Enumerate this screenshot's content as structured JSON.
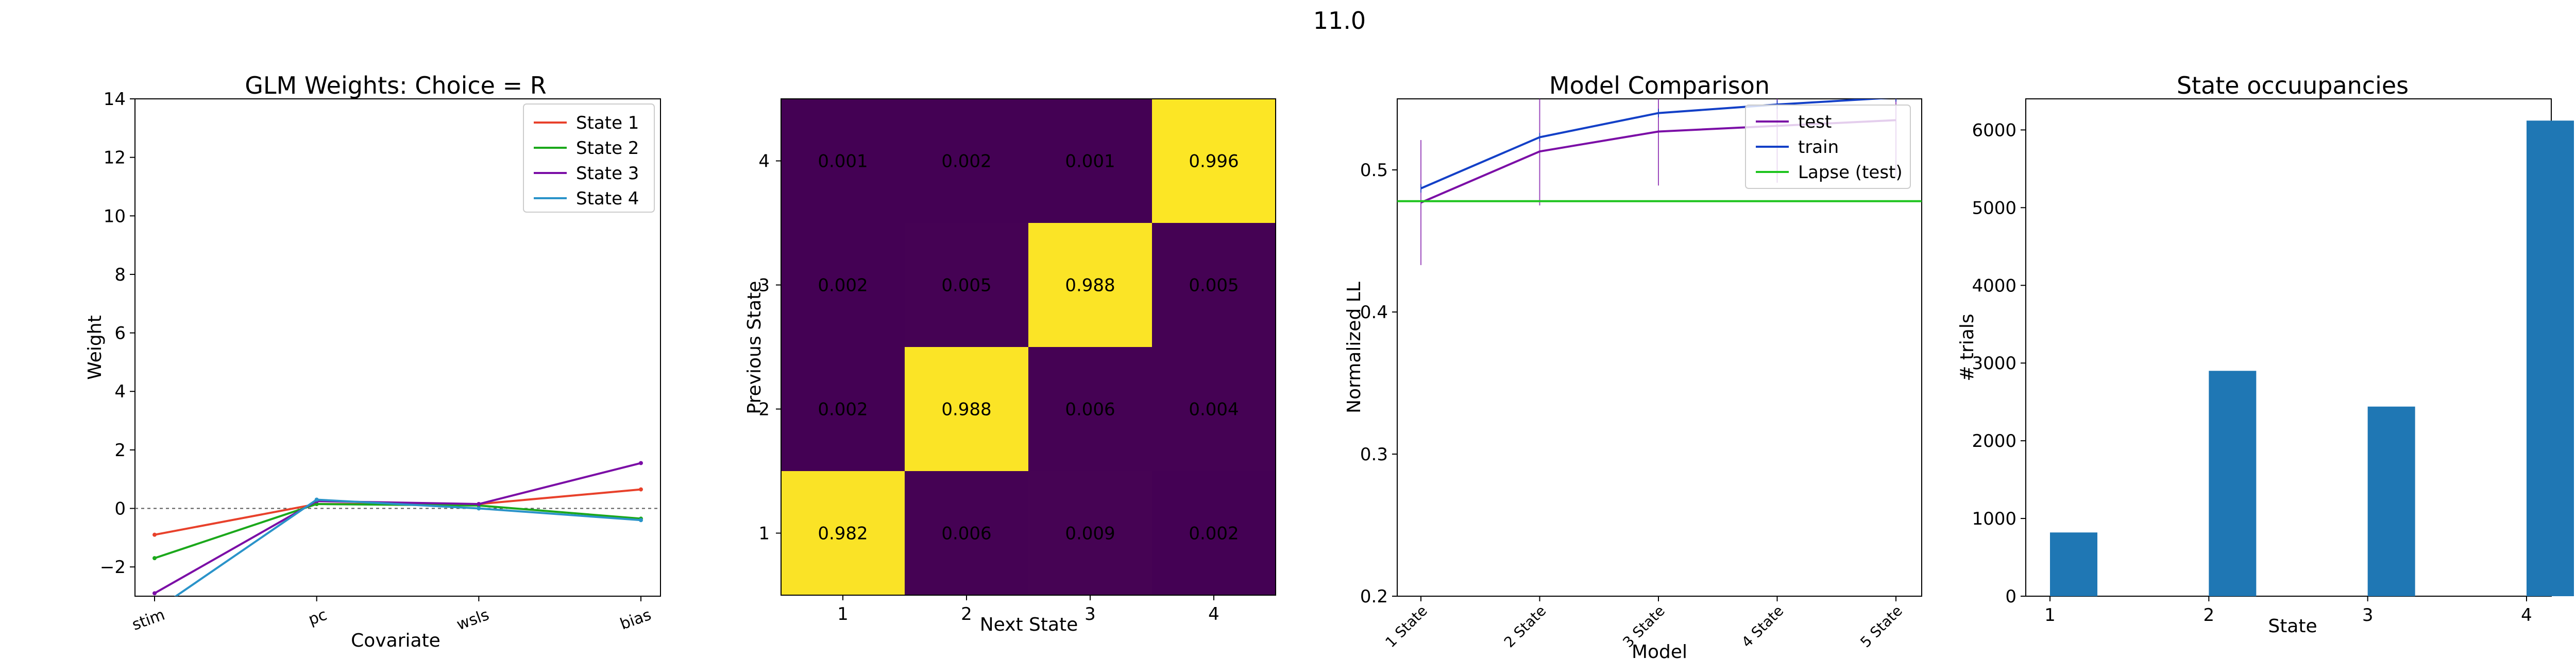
{
  "suptitle": "11.0",
  "chart_data": [
    {
      "type": "line",
      "title": "GLM Weights: Choice = R",
      "xlabel": "Covariate",
      "ylabel": "Weight",
      "categories": [
        "stim",
        "pc",
        "wsls",
        "bias"
      ],
      "ylim": [
        -3,
        14
      ],
      "yticks": [
        -2,
        0,
        2,
        4,
        6,
        8,
        10,
        12,
        14
      ],
      "ytick_labels": [
        "−2",
        "0",
        "2",
        "4",
        "6",
        "8",
        "10",
        "12",
        "14"
      ],
      "zero_line": true,
      "legend": "top-right",
      "series": [
        {
          "name": "State 1",
          "color": "#e8412b",
          "values": [
            -0.9,
            0.15,
            0.15,
            0.65
          ]
        },
        {
          "name": "State 2",
          "color": "#1ba81b",
          "values": [
            -1.7,
            0.15,
            0.1,
            -0.35
          ]
        },
        {
          "name": "State 3",
          "color": "#7b0ea6",
          "values": [
            -2.9,
            0.25,
            0.15,
            1.55
          ]
        },
        {
          "name": "State 4",
          "color": "#2a93c9",
          "values": [
            -3.5,
            0.3,
            0.0,
            -0.4
          ]
        }
      ]
    },
    {
      "type": "heatmap",
      "xlabel": "Next State",
      "ylabel": "Previous State",
      "x_categories": [
        "1",
        "2",
        "3",
        "4"
      ],
      "y_categories": [
        "1",
        "2",
        "3",
        "4"
      ],
      "low_color": "#440154",
      "high_color": "#fde725",
      "rows": [
        {
          "prev": "4",
          "values": [
            "0.001",
            "0.002",
            "0.001",
            "0.996"
          ]
        },
        {
          "prev": "3",
          "values": [
            "0.002",
            "0.005",
            "0.988",
            "0.005"
          ]
        },
        {
          "prev": "2",
          "values": [
            "0.002",
            "0.988",
            "0.006",
            "0.004"
          ]
        },
        {
          "prev": "1",
          "values": [
            "0.982",
            "0.006",
            "0.009",
            "0.002"
          ]
        }
      ]
    },
    {
      "type": "line",
      "title": "Model Comparison",
      "xlabel": "Model",
      "ylabel": "Normalized LL",
      "categories": [
        "1 State",
        "2 State",
        "3 State",
        "4 State",
        "5 State"
      ],
      "ylim": [
        0.2,
        0.55
      ],
      "yticks": [
        0.2,
        0.3,
        0.4,
        0.5
      ],
      "ytick_labels": [
        "0.2",
        "0.3",
        "0.4",
        "0.5"
      ],
      "legend": "top-right",
      "series": [
        {
          "name": "test",
          "color": "#7b0ea6",
          "values": [
            0.477,
            0.513,
            0.527,
            0.531,
            0.535
          ],
          "err": [
            0.044,
            0.038,
            0.038,
            0.04,
            0.04
          ]
        },
        {
          "name": "train",
          "color": "#1340c7",
          "values": [
            0.487,
            0.523,
            0.54,
            0.546,
            0.551
          ],
          "err": [
            0.003,
            0.003,
            0.003,
            0.003,
            0.003
          ]
        },
        {
          "name": "Lapse (test)",
          "color": "#1fc41f",
          "values": [
            0.478,
            0.478,
            0.478,
            0.478,
            0.478
          ]
        }
      ]
    },
    {
      "type": "bar",
      "title": "State occuupancies",
      "xlabel": "State",
      "ylabel": "# trials",
      "categories": [
        "1",
        "2",
        "3",
        "4"
      ],
      "values": [
        820,
        2900,
        2440,
        6120
      ],
      "ylim": [
        0,
        6400
      ],
      "yticks": [
        0,
        1000,
        2000,
        3000,
        4000,
        5000,
        6000
      ],
      "ytick_labels": [
        "0",
        "1000",
        "2000",
        "3000",
        "4000",
        "5000",
        "6000"
      ],
      "color": "#1f77b4"
    }
  ]
}
